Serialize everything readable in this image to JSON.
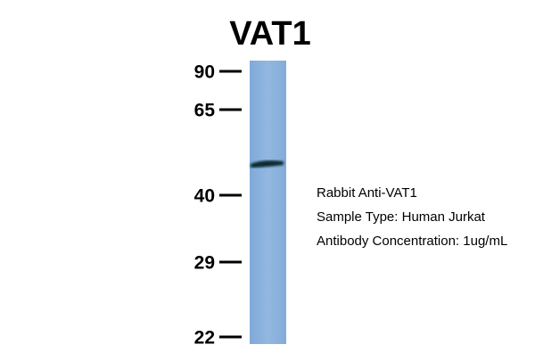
{
  "title": "VAT1",
  "markers": [
    "90",
    "65",
    "40",
    "29",
    "22"
  ],
  "annotations": [
    "Rabbit Anti-VAT1",
    "Sample Type: Human Jurkat",
    "Antibody Concentration: 1ug/mL"
  ]
}
